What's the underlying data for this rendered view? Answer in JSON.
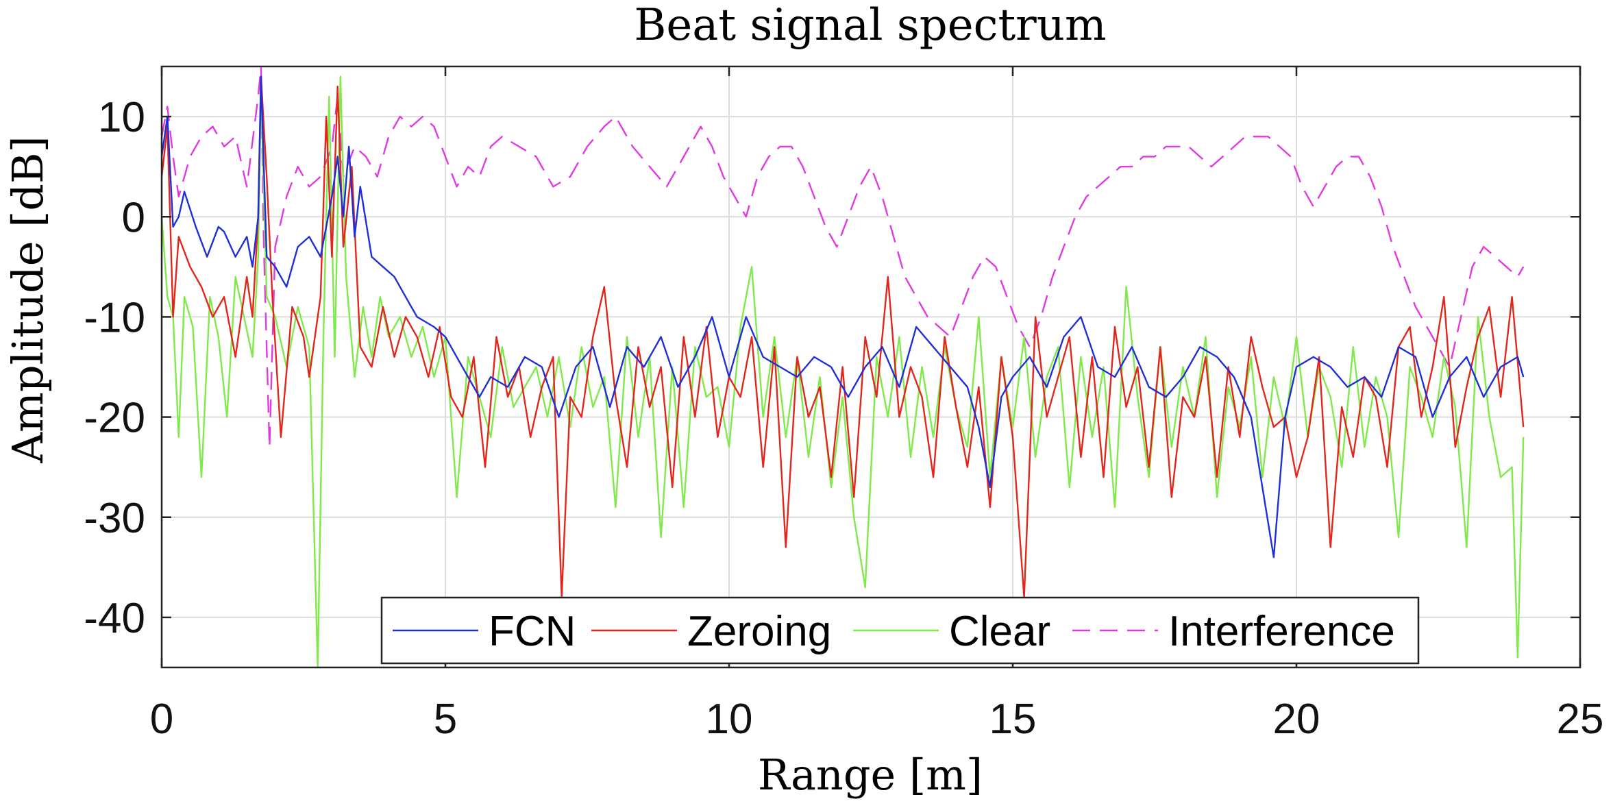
{
  "chart_data": {
    "type": "line",
    "title": "Beat signal spectrum",
    "xlabel": "Range [m]",
    "ylabel": "Amplitude [dB]",
    "xlim": [
      0,
      25
    ],
    "ylim": [
      -45,
      15
    ],
    "xticks": [
      0,
      5,
      10,
      15,
      20,
      25
    ],
    "yticks": [
      -40,
      -30,
      -20,
      -10,
      0,
      10
    ],
    "xtick_labels": [
      "0",
      "5",
      "10",
      "15",
      "20",
      "25"
    ],
    "ytick_labels": [
      "-40",
      "-30",
      "-20",
      "-10",
      "0",
      "10"
    ],
    "grid": true,
    "legend_position": "bottom-center",
    "series": [
      {
        "name": "FCN",
        "color": "#1f2fd6",
        "style": "solid",
        "x": [
          0,
          0.1,
          0.2,
          0.3,
          0.4,
          0.6,
          0.8,
          1.0,
          1.1,
          1.3,
          1.5,
          1.6,
          1.7,
          1.75,
          1.85,
          2.0,
          2.2,
          2.4,
          2.6,
          2.8,
          2.9,
          3.0,
          3.1,
          3.2,
          3.3,
          3.4,
          3.5,
          3.7,
          3.9,
          4.1,
          4.3,
          4.5,
          4.8,
          5.0,
          5.3,
          5.6,
          5.8,
          6.1,
          6.4,
          6.7,
          7.0,
          7.3,
          7.6,
          7.9,
          8.2,
          8.5,
          8.8,
          9.1,
          9.4,
          9.7,
          10.0,
          10.3,
          10.6,
          10.9,
          11.2,
          11.5,
          11.8,
          12.1,
          12.4,
          12.7,
          13.0,
          13.3,
          13.6,
          13.9,
          14.2,
          14.4,
          14.6,
          14.8,
          15.0,
          15.3,
          15.6,
          15.9,
          16.2,
          16.5,
          16.8,
          17.1,
          17.4,
          17.7,
          18.0,
          18.3,
          18.6,
          18.9,
          19.2,
          19.4,
          19.6,
          19.8,
          20.0,
          20.3,
          20.6,
          20.9,
          21.2,
          21.5,
          21.8,
          22.1,
          22.4,
          22.7,
          23.0,
          23.3,
          23.6,
          23.9,
          24.0
        ],
        "y": [
          6,
          10,
          -1,
          0,
          2.5,
          -1,
          -4,
          -1,
          -1.5,
          -4,
          -2,
          -5,
          0,
          14,
          -4,
          -5,
          -7,
          -3,
          -2,
          -4,
          -1,
          2,
          6,
          0,
          7,
          -2,
          3,
          -4,
          -5,
          -6,
          -8,
          -10,
          -11,
          -12,
          -15,
          -18,
          -16,
          -17,
          -14,
          -15,
          -20,
          -15,
          -13,
          -19,
          -13,
          -15,
          -12,
          -17,
          -14,
          -10,
          -16,
          -10,
          -14,
          -15,
          -16,
          -14,
          -15,
          -18,
          -15,
          -13,
          -17,
          -11,
          -13,
          -15,
          -17,
          -21,
          -27,
          -18,
          -16,
          -14,
          -17,
          -12,
          -10,
          -15,
          -16,
          -13,
          -17,
          -18,
          -16,
          -13,
          -14,
          -16,
          -20,
          -27,
          -34,
          -20,
          -15,
          -14,
          -15,
          -17,
          -16,
          -18,
          -13,
          -14,
          -20,
          -16,
          -14,
          -18,
          -15,
          -14,
          -16
        ]
      },
      {
        "name": "Zeroing",
        "color": "#e3261c",
        "style": "solid",
        "x": [
          0,
          0.1,
          0.2,
          0.3,
          0.5,
          0.7,
          0.9,
          1.1,
          1.3,
          1.5,
          1.6,
          1.7,
          1.75,
          1.85,
          1.95,
          2.1,
          2.3,
          2.5,
          2.6,
          2.8,
          2.9,
          3.0,
          3.1,
          3.2,
          3.35,
          3.5,
          3.7,
          3.9,
          4.1,
          4.3,
          4.5,
          4.7,
          4.9,
          5.1,
          5.3,
          5.5,
          5.7,
          5.9,
          6.1,
          6.3,
          6.5,
          6.7,
          6.9,
          7.05,
          7.2,
          7.4,
          7.6,
          7.8,
          8.0,
          8.2,
          8.4,
          8.6,
          8.8,
          9.0,
          9.2,
          9.4,
          9.6,
          9.8,
          10.0,
          10.2,
          10.4,
          10.6,
          10.8,
          11.0,
          11.2,
          11.4,
          11.6,
          11.8,
          12.0,
          12.2,
          12.4,
          12.6,
          12.8,
          13.0,
          13.2,
          13.4,
          13.6,
          13.8,
          14.0,
          14.2,
          14.4,
          14.6,
          14.8,
          15.0,
          15.2,
          15.4,
          15.6,
          15.8,
          16.0,
          16.2,
          16.4,
          16.6,
          16.8,
          17.0,
          17.2,
          17.4,
          17.6,
          17.8,
          18.0,
          18.2,
          18.4,
          18.6,
          18.8,
          19.0,
          19.2,
          19.4,
          19.6,
          19.8,
          20.0,
          20.2,
          20.4,
          20.6,
          20.8,
          21.0,
          21.2,
          21.4,
          21.6,
          21.8,
          22.0,
          22.2,
          22.4,
          22.6,
          22.8,
          23.0,
          23.2,
          23.4,
          23.6,
          23.8,
          24.0
        ],
        "y": [
          4,
          9,
          -10,
          -2,
          -5,
          -7,
          -10,
          -8,
          -14,
          -6,
          -10,
          0,
          14,
          4,
          -8,
          -22,
          -9,
          -12,
          -16,
          -8,
          10,
          -4,
          13,
          -3,
          5,
          -13,
          -15,
          -9,
          -14,
          -10,
          -12,
          -16,
          -11,
          -18,
          -20,
          -14,
          -25,
          -12,
          -18,
          -15,
          -22,
          -17,
          -14,
          -38,
          -18,
          -20,
          -12,
          -7,
          -18,
          -25,
          -13,
          -19,
          -15,
          -27,
          -12,
          -20,
          -11,
          -22,
          -16,
          -18,
          -12,
          -25,
          -13,
          -33,
          -14,
          -20,
          -17,
          -26,
          -15,
          -28,
          -12,
          -18,
          -6,
          -20,
          -15,
          -18,
          -26,
          -12,
          -19,
          -25,
          -17,
          -29,
          -14,
          -22,
          -38,
          -10,
          -20,
          -16,
          -12,
          -24,
          -14,
          -26,
          -11,
          -19,
          -15,
          -25,
          -13,
          -28,
          -18,
          -20,
          -14,
          -26,
          -15,
          -22,
          -12,
          -17,
          -21,
          -20,
          -26,
          -22,
          -14,
          -33,
          -19,
          -24,
          -16,
          -18,
          -25,
          -13,
          -11,
          -20,
          -15,
          -8,
          -23,
          -17,
          -12,
          -9,
          -18,
          -8,
          -21
        ]
      },
      {
        "name": "Clear",
        "color": "#7fea4a",
        "style": "solid",
        "x": [
          0,
          0.1,
          0.2,
          0.3,
          0.4,
          0.55,
          0.7,
          0.85,
          1.0,
          1.15,
          1.3,
          1.45,
          1.6,
          1.7,
          1.75,
          1.85,
          2.0,
          2.2,
          2.4,
          2.6,
          2.75,
          2.85,
          2.95,
          3.05,
          3.15,
          3.25,
          3.4,
          3.55,
          3.7,
          3.85,
          4.0,
          4.2,
          4.4,
          4.6,
          4.8,
          5.0,
          5.2,
          5.4,
          5.6,
          5.8,
          6.0,
          6.2,
          6.4,
          6.6,
          6.8,
          7.0,
          7.2,
          7.4,
          7.6,
          7.8,
          8.0,
          8.2,
          8.4,
          8.6,
          8.8,
          9.0,
          9.2,
          9.4,
          9.6,
          9.8,
          10.0,
          10.2,
          10.4,
          10.6,
          10.8,
          11.0,
          11.2,
          11.4,
          11.6,
          11.8,
          12.0,
          12.2,
          12.4,
          12.6,
          12.8,
          13.0,
          13.2,
          13.4,
          13.6,
          13.8,
          14.0,
          14.2,
          14.4,
          14.6,
          14.8,
          15.0,
          15.2,
          15.4,
          15.6,
          15.8,
          16.0,
          16.2,
          16.4,
          16.6,
          16.8,
          17.0,
          17.2,
          17.4,
          17.6,
          17.8,
          18.0,
          18.2,
          18.4,
          18.6,
          18.8,
          19.0,
          19.2,
          19.4,
          19.6,
          19.8,
          20.0,
          20.2,
          20.4,
          20.6,
          20.8,
          21.0,
          21.2,
          21.4,
          21.6,
          21.8,
          22.0,
          22.2,
          22.4,
          22.6,
          22.8,
          23.0,
          23.2,
          23.4,
          23.6,
          23.8,
          23.9,
          24.0
        ],
        "y": [
          0,
          -8,
          -10,
          -22,
          -8,
          -11,
          -26,
          -8,
          -12,
          -20,
          -6,
          -10,
          -14,
          -4,
          13,
          -8,
          -10,
          -15,
          -9,
          -13,
          -45,
          -12,
          12,
          -14,
          14,
          -6,
          -16,
          -9,
          -14,
          -8,
          -12,
          -10,
          -14,
          -11,
          -16,
          -12,
          -28,
          -14,
          -18,
          -22,
          -13,
          -19,
          -17,
          -15,
          -20,
          -14,
          -21,
          -13,
          -19,
          -16,
          -29,
          -12,
          -22,
          -14,
          -32,
          -15,
          -29,
          -13,
          -18,
          -17,
          -23,
          -11,
          -5,
          -20,
          -12,
          -22,
          -14,
          -24,
          -16,
          -27,
          -18,
          -30,
          -37,
          -14,
          -20,
          -12,
          -24,
          -15,
          -22,
          -13,
          -19,
          -23,
          -10,
          -26,
          -14,
          -21,
          -12,
          -24,
          -16,
          -13,
          -27,
          -14,
          -22,
          -15,
          -29,
          -7,
          -18,
          -26,
          -13,
          -23,
          -15,
          -20,
          -12,
          -28,
          -17,
          -21,
          -14,
          -26,
          -16,
          -21,
          -12,
          -22,
          -15,
          -18,
          -25,
          -13,
          -23,
          -16,
          -20,
          -32,
          -15,
          -18,
          -22,
          -14,
          -19,
          -33,
          -10,
          -20,
          -26,
          -25,
          -44,
          -22
        ]
      },
      {
        "name": "Interference",
        "color": "#e13ae3",
        "style": "dashed",
        "x": [
          0,
          0.1,
          0.2,
          0.3,
          0.5,
          0.7,
          0.9,
          1.1,
          1.3,
          1.5,
          1.7,
          1.75,
          1.8,
          1.9,
          2.0,
          2.2,
          2.4,
          2.6,
          2.8,
          3.0,
          3.1,
          3.2,
          3.4,
          3.6,
          3.8,
          4.0,
          4.2,
          4.4,
          4.6,
          4.8,
          5.0,
          5.2,
          5.4,
          5.6,
          5.8,
          6.0,
          6.3,
          6.6,
          6.9,
          7.2,
          7.5,
          7.8,
          8.0,
          8.3,
          8.6,
          8.9,
          9.2,
          9.5,
          9.7,
          9.9,
          10.1,
          10.3,
          10.5,
          10.7,
          10.9,
          11.1,
          11.3,
          11.5,
          11.7,
          11.9,
          12.1,
          12.3,
          12.5,
          12.7,
          12.9,
          13.1,
          13.3,
          13.5,
          13.7,
          13.9,
          14.1,
          14.3,
          14.5,
          14.7,
          14.9,
          15.1,
          15.3,
          15.5,
          15.7,
          15.9,
          16.1,
          16.3,
          16.5,
          16.7,
          16.9,
          17.1,
          17.3,
          17.5,
          17.7,
          17.9,
          18.1,
          18.3,
          18.5,
          18.7,
          18.9,
          19.1,
          19.3,
          19.5,
          19.7,
          19.9,
          20.1,
          20.3,
          20.5,
          20.7,
          20.9,
          21.1,
          21.3,
          21.5,
          21.7,
          21.9,
          22.1,
          22.3,
          22.5,
          22.7,
          22.9,
          23.1,
          23.3,
          23.5,
          23.7,
          23.9,
          24.0
        ],
        "y": [
          8,
          11,
          6,
          2,
          6,
          8,
          9,
          7,
          8,
          3,
          12,
          15,
          -3,
          -23,
          -3,
          2,
          5,
          3,
          4,
          7,
          12,
          4,
          7,
          6,
          4,
          8,
          10,
          9,
          10,
          9,
          6,
          3,
          5,
          4,
          7,
          8,
          7,
          6,
          3,
          4,
          7,
          9,
          10,
          7,
          5,
          3,
          6,
          9,
          7,
          4,
          2,
          0,
          4,
          6,
          7,
          7,
          5,
          2,
          -1,
          -3,
          0,
          3,
          5,
          2,
          -2,
          -6,
          -8,
          -10,
          -11,
          -12,
          -9,
          -6,
          -4,
          -5,
          -8,
          -11,
          -13,
          -10,
          -6,
          -3,
          0,
          2,
          3,
          4,
          5,
          5,
          6,
          6,
          7,
          7,
          7,
          6,
          5,
          6,
          7,
          8,
          8,
          8,
          7,
          6,
          3,
          1,
          3,
          5,
          6,
          6,
          4,
          1,
          -3,
          -6,
          -9,
          -11,
          -13,
          -15,
          -10,
          -5,
          -3,
          -4,
          -5,
          -6,
          -5
        ]
      }
    ]
  }
}
